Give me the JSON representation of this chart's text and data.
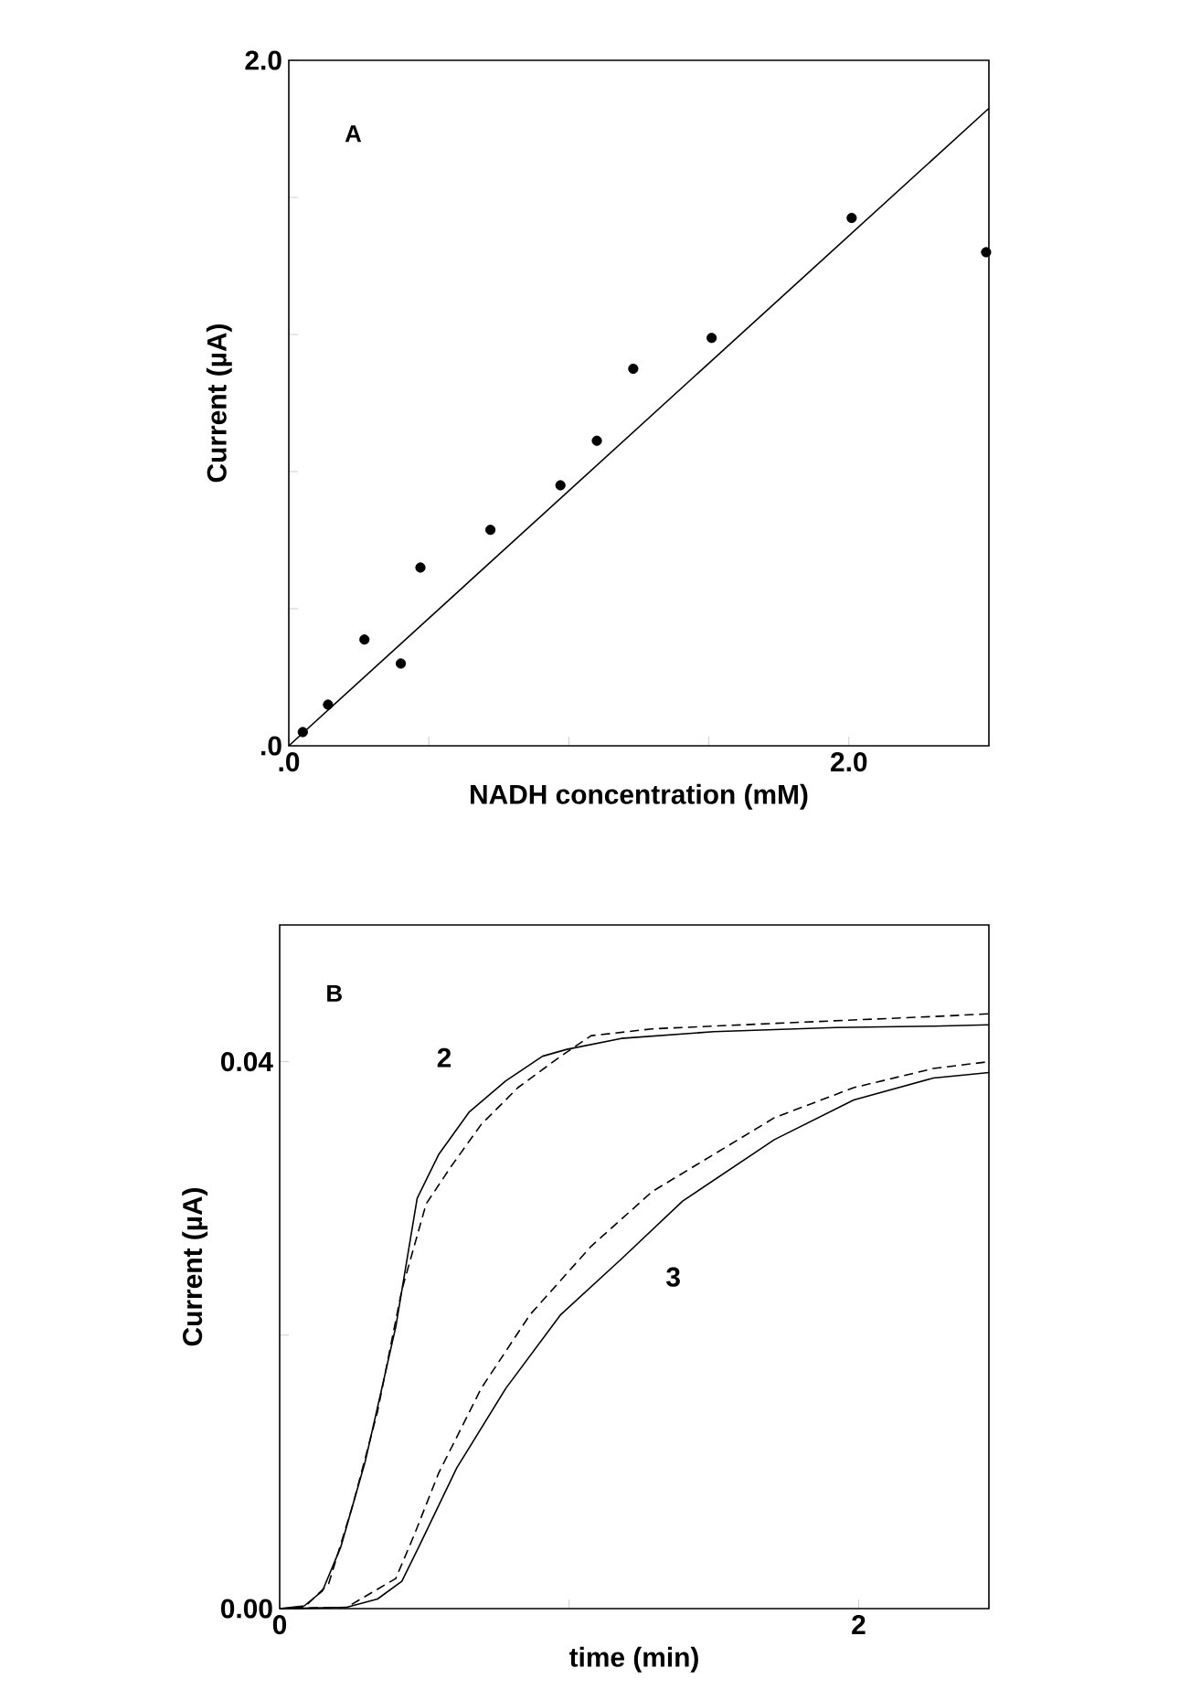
{
  "chart_data": [
    {
      "type": "scatter",
      "xlabel": "NADH concentration (mM)",
      "ylabel": "Current (µA)",
      "annotations": [
        "A"
      ],
      "marker": "circle",
      "xlim": [
        0,
        2.5
      ],
      "ylim": [
        0,
        2.0
      ],
      "xticks": [
        {
          "value": 0,
          "label": ".0"
        },
        {
          "value": 0.5,
          "label": null
        },
        {
          "value": 1,
          "label": null
        },
        {
          "value": 1.5,
          "label": null
        },
        {
          "value": 2,
          "label": "2.0"
        }
      ],
      "yticks": [
        {
          "value": 0,
          "label": ".0"
        },
        {
          "value": 0.4,
          "label": null
        },
        {
          "value": 0.8,
          "label": null
        },
        {
          "value": 1.2,
          "label": null
        },
        {
          "value": 1.6,
          "label": null
        },
        {
          "value": 2,
          "label": "2.0"
        }
      ],
      "series": [
        {
          "type": "scatter",
          "color": "#000000",
          "x": [
            0.05,
            0.14,
            0.27,
            0.4,
            0.47,
            0.72,
            0.97,
            1.1,
            1.23,
            1.51,
            2.01,
            2.49
          ],
          "values": [
            0.04,
            0.12,
            0.31,
            0.24,
            0.52,
            0.63,
            0.76,
            0.89,
            1.1,
            1.19,
            1.54,
            1.44
          ]
        },
        {
          "type": "line",
          "marker": "none",
          "line_style": "solid",
          "color": "#000000",
          "x": [
            0,
            2.5
          ],
          "values": [
            0,
            1.86
          ]
        }
      ]
    },
    {
      "type": "line",
      "xlabel": "time (min)",
      "ylabel": "Current (µA)",
      "annotations": [
        "B",
        "2",
        "3"
      ],
      "xlim": [
        0,
        2.45
      ],
      "ylim": [
        0,
        0.05
      ],
      "xticks": [
        0,
        {
          "value": 1,
          "label": null
        },
        2
      ],
      "yticks": [
        {
          "value": 0,
          "label": "0.00"
        },
        {
          "value": 0.02,
          "label": null
        },
        {
          "value": 0.04,
          "label": "0.04"
        }
      ],
      "series": [
        {
          "line_style": "solid",
          "color": "#000000",
          "x": [
            0,
            0.085,
            0.148,
            0.211,
            0.296,
            0.401,
            0.475,
            0.549,
            0.654,
            0.781,
            0.908,
            0.992,
            1.18,
            1.5,
            1.92,
            2.26,
            2.45
          ],
          "values": [
            0,
            0.0002,
            0.0013,
            0.0045,
            0.0108,
            0.0206,
            0.03,
            0.0332,
            0.0363,
            0.0386,
            0.0404,
            0.0409,
            0.0417,
            0.0422,
            0.0425,
            0.0426,
            0.0427
          ]
        },
        {
          "line_style": "dashed",
          "color": "#000000",
          "x": [
            0,
            0.085,
            0.169,
            0.253,
            0.338,
            0.422,
            0.506,
            0.591,
            0.696,
            0.823,
            0.971,
            1.076,
            1.287,
            1.709,
            2.258,
            2.45
          ],
          "values": [
            0,
            0.0001,
            0.0018,
            0.0076,
            0.0144,
            0.0233,
            0.0296,
            0.0323,
            0.0354,
            0.0381,
            0.0404,
            0.0419,
            0.0424,
            0.0428,
            0.0433,
            0.0435
          ]
        },
        {
          "line_style": "solid",
          "color": "#000000",
          "x": [
            0,
            0.232,
            0.338,
            0.422,
            0.485,
            0.612,
            0.781,
            0.971,
            1.182,
            1.392,
            1.709,
            1.983,
            2.258,
            2.45
          ],
          "values": [
            0,
            0.0001,
            0.0007,
            0.002,
            0.0047,
            0.0103,
            0.0161,
            0.0215,
            0.0256,
            0.0298,
            0.0343,
            0.0372,
            0.0388,
            0.0392
          ]
        },
        {
          "line_style": "dashed",
          "color": "#000000",
          "x": [
            0,
            0.232,
            0.401,
            0.465,
            0.549,
            0.696,
            0.865,
            1.076,
            1.287,
            1.498,
            1.709,
            1.983,
            2.258,
            2.45
          ],
          "values": [
            0,
            0.0001,
            0.0022,
            0.0054,
            0.0099,
            0.0161,
            0.0215,
            0.0265,
            0.0305,
            0.0332,
            0.0359,
            0.0381,
            0.0395,
            0.04
          ]
        }
      ]
    }
  ]
}
